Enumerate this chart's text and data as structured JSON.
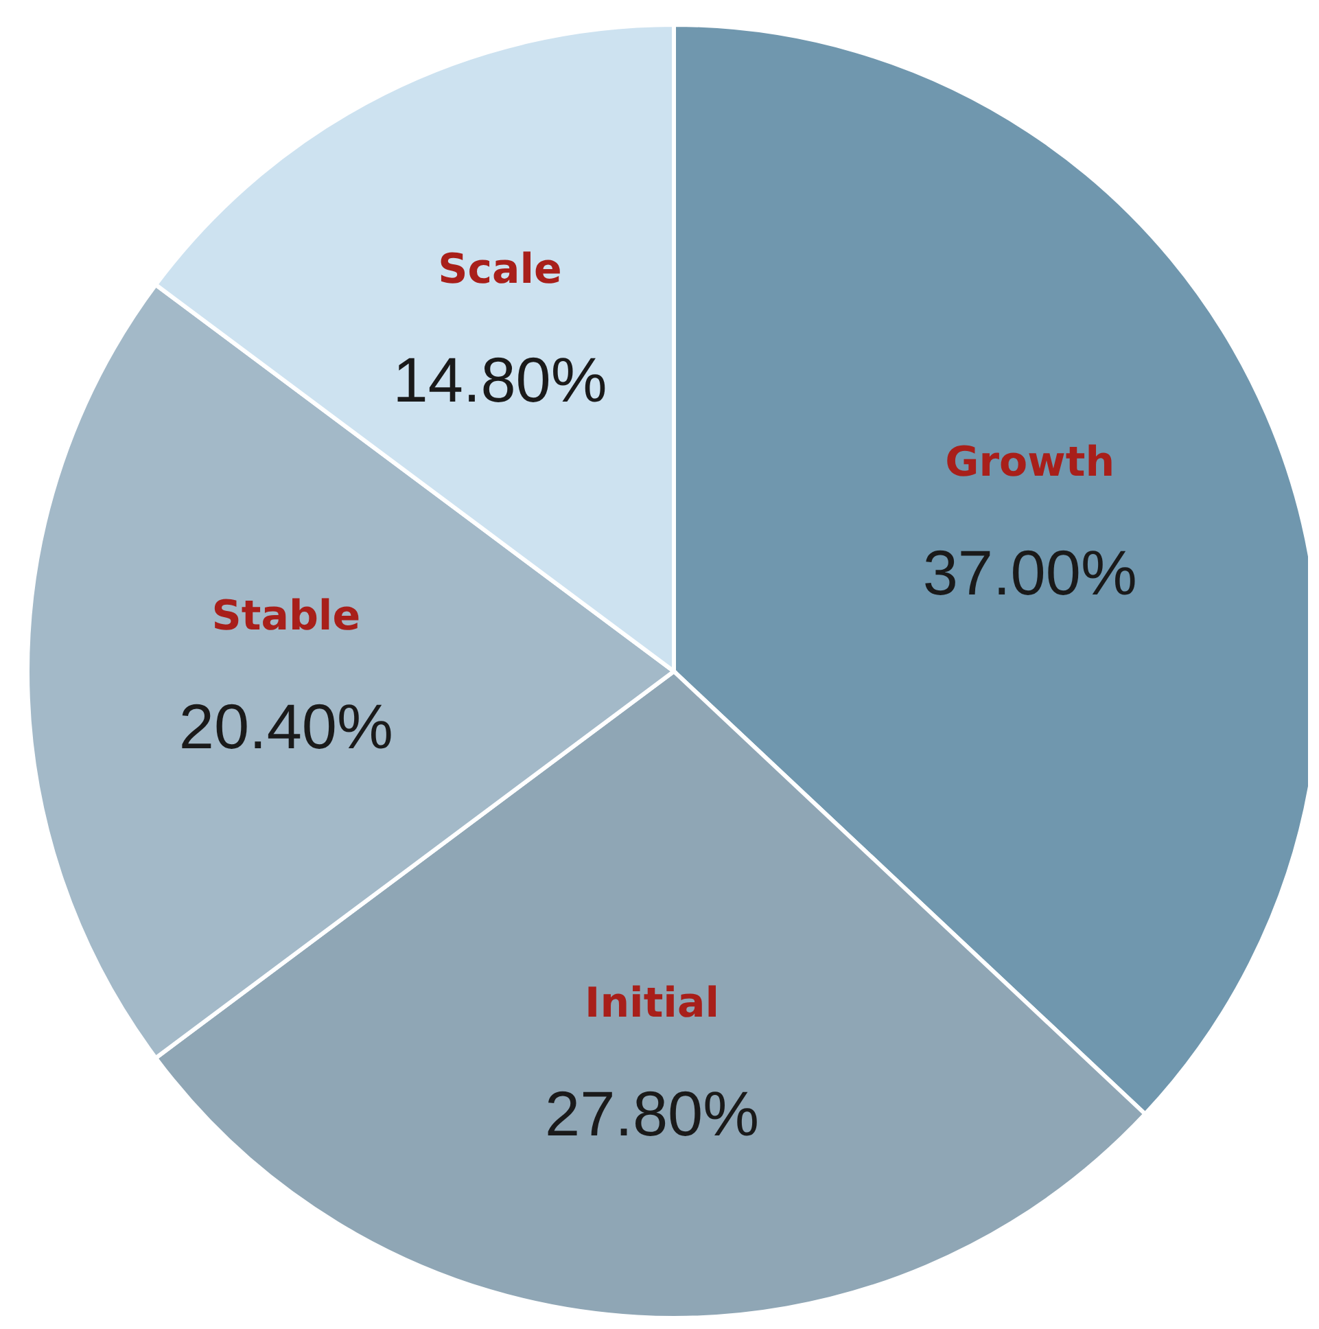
{
  "chart_data": {
    "type": "pie",
    "categories": [
      "Growth",
      "Initial",
      "Stable",
      "Scale"
    ],
    "values": [
      37.0,
      27.8,
      20.4,
      14.8
    ],
    "value_labels": [
      "37.00%",
      "27.80%",
      "20.40%",
      "14.80%"
    ],
    "colors": [
      "#7097ae",
      "#8fa6b5",
      "#a3b9c8",
      "#cde2f0"
    ]
  }
}
